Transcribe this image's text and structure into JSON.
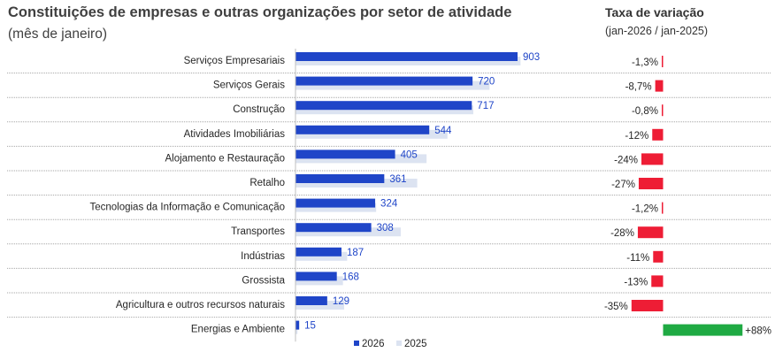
{
  "header": {
    "title": "Constituições de empresas e outras organizações por setor de atividade",
    "subtitle": "(mês de janeiro)",
    "rate_title": "Taxa de variação",
    "rate_subtitle": "(jan-2026 / jan-2025)"
  },
  "colors": {
    "series_2026": "#1f45c8",
    "series_2025": "#dce3f1",
    "negative": "#ee1d35",
    "positive": "#1faa43",
    "value_label": "#1f45c8",
    "separator": "#a6a6a6"
  },
  "chart_data": {
    "type": "bar",
    "orientation": "horizontal",
    "title": "Constituições de empresas e outras organizações por setor de atividade",
    "subtitle": "(mês de janeiro)",
    "categories": [
      "Serviços Empresariais",
      "Serviços Gerais",
      "Construção",
      "Atividades Imobiliárias",
      "Alojamento e Restauração",
      "Retalho",
      "Tecnologias da Informação e Comunicação",
      "Transportes",
      "Indústrias",
      "Grossista",
      "Agricultura e outros recursos naturais",
      "Energias e Ambiente"
    ],
    "series": [
      {
        "name": "2026",
        "values": [
          903,
          720,
          717,
          544,
          405,
          361,
          324,
          308,
          187,
          168,
          129,
          15
        ]
      },
      {
        "name": "2025",
        "values": [
          915,
          789,
          723,
          618,
          533,
          495,
          328,
          428,
          210,
          193,
          198,
          8
        ]
      }
    ],
    "value_labels": [
      "903",
      "720",
      "717",
      "544",
      "405",
      "361",
      "324",
      "308",
      "187",
      "168",
      "129",
      "15"
    ],
    "xlim": [
      0,
      1000
    ],
    "legend": {
      "position": "bottom",
      "entries": [
        "2026",
        "2025"
      ]
    },
    "rate_of_change": {
      "title": "Taxa de variação",
      "subtitle": "(jan-2026 / jan-2025)",
      "values": [
        -1.3,
        -8.7,
        -0.8,
        -12,
        -24,
        -27,
        -1.2,
        -28,
        -11,
        -13,
        -35,
        88
      ],
      "labels": [
        "-1,3%",
        "-8,7%",
        "-0,8%",
        "-12%",
        "-24%",
        "-27%",
        "-1,2%",
        "-28%",
        "-11%",
        "-13%",
        "-35%",
        "+88%"
      ],
      "range": [
        -35,
        88
      ]
    }
  }
}
